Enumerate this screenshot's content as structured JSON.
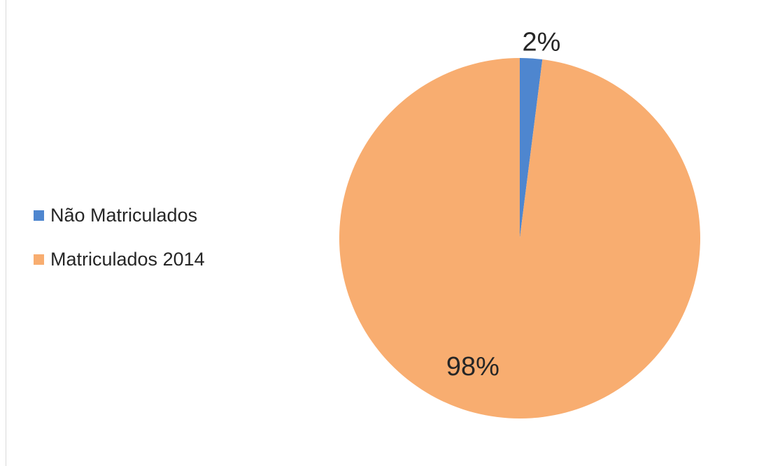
{
  "chart_data": {
    "type": "pie",
    "title": "",
    "categories": [
      "Não Matriculados",
      "Matriculados 2014"
    ],
    "values": [
      2,
      98
    ],
    "data_labels": [
      "2%",
      "98%"
    ],
    "colors": [
      "#4e86cf",
      "#f8ad70"
    ],
    "legend_position": "left"
  },
  "legend": {
    "items": [
      {
        "label": "Não Matriculados",
        "color": "#4e86cf"
      },
      {
        "label": "Matriculados 2014",
        "color": "#f8ad70"
      }
    ]
  }
}
